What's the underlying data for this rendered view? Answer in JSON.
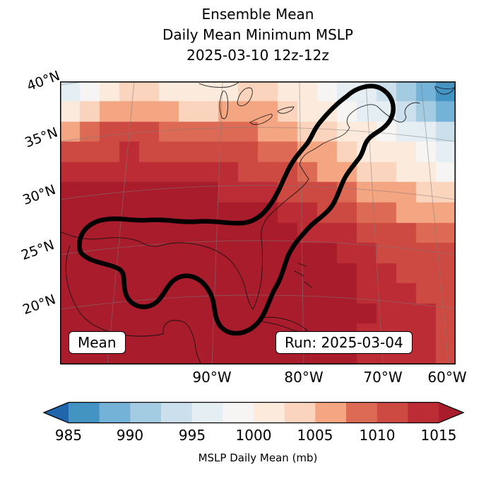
{
  "title": {
    "line1": "Ensemble Mean",
    "line2": "Daily Mean Minimum MSLP",
    "line3": "2025-03-10 12z-12z"
  },
  "map": {
    "lat_labels": [
      "40°N",
      "35°N",
      "30°N",
      "25°N",
      "20°N"
    ],
    "lon_labels": [
      "90°W",
      "80°W",
      "70°W",
      "60°W"
    ],
    "mean_box_label": "Mean",
    "run_box_label": "Run: 2025-03-04"
  },
  "colorbar": {
    "label": "MSLP Daily Mean (mb)",
    "ticks": [
      "985",
      "990",
      "995",
      "1000",
      "1005",
      "1010",
      "1015"
    ],
    "under_color": "#2166ac",
    "over_color": "#a81c2c",
    "segment_colors": [
      "#4393c3",
      "#74b2d7",
      "#a3cbe2",
      "#cbdfec",
      "#e4eef3",
      "#f6f5f3",
      "#fcebdd",
      "#fad4bd",
      "#f4a582",
      "#dd6a55",
      "#cc4a42",
      "#bb2c35"
    ]
  },
  "chart_data": {
    "type": "heatmap",
    "title": "Ensemble Mean Daily Mean Minimum MSLP 2025-03-10 12z-12z",
    "variable": "MSLP Daily Mean (mb)",
    "run": "2025-03-04",
    "valid": "2025-03-10 12z-12z",
    "colormap": "RdBu_r",
    "levels_mb": [
      985,
      987.5,
      990,
      992.5,
      995,
      997.5,
      1000,
      1002.5,
      1005,
      1007.5,
      1010,
      1012.5,
      1015
    ],
    "level_step_mb": 2.5,
    "lat_ticks_deg_n": [
      40,
      35,
      30,
      25,
      20
    ],
    "lon_ticks_deg_w": [
      90,
      80,
      70,
      60
    ],
    "contour_region_label": "Mean",
    "grid_note": "approximate MSLP (mb) read from map shading; 20 columns (west to east) x 14 rows (north to south)",
    "grid_mb": [
      [
        996,
        999,
        1002,
        1004,
        1004,
        1002,
        1000,
        1000,
        1002,
        1004,
        1003,
        1002,
        1000,
        999,
        997,
        995,
        993,
        990,
        988,
        986
      ],
      [
        1002,
        1004,
        1006,
        1007,
        1007,
        1006,
        1004,
        1003,
        1005,
        1006,
        1005,
        1004,
        1002,
        1000,
        998,
        997,
        995,
        993,
        990,
        988
      ],
      [
        1007,
        1009,
        1010,
        1010,
        1010,
        1009,
        1008,
        1008,
        1008,
        1008,
        1007,
        1006,
        1004,
        1003,
        1001,
        1000,
        998,
        997,
        995,
        994
      ],
      [
        1011,
        1012,
        1012,
        1013,
        1012,
        1012,
        1011,
        1011,
        1010,
        1010,
        1009,
        1008,
        1006,
        1005,
        1003,
        1002,
        1001,
        1000,
        998,
        997
      ],
      [
        1013,
        1014,
        1014,
        1014,
        1014,
        1014,
        1013,
        1013,
        1013,
        1012,
        1011,
        1010,
        1009,
        1007,
        1006,
        1004,
        1003,
        1002,
        1000,
        999
      ],
      [
        1016,
        1016,
        1016,
        1016,
        1016,
        1015,
        1015,
        1015,
        1014,
        1014,
        1013,
        1012,
        1011,
        1010,
        1008,
        1007,
        1006,
        1005,
        1004,
        1003
      ],
      [
        1016,
        1017,
        1017,
        1017,
        1017,
        1016,
        1016,
        1016,
        1016,
        1015,
        1015,
        1014,
        1013,
        1012,
        1011,
        1009,
        1008,
        1007,
        1006,
        1005
      ],
      [
        1017,
        1017,
        1017,
        1017,
        1017,
        1017,
        1017,
        1017,
        1016,
        1016,
        1016,
        1015,
        1014,
        1014,
        1013,
        1012,
        1011,
        1010,
        1009,
        1008
      ],
      [
        1017,
        1017,
        1017,
        1017,
        1017,
        1017,
        1017,
        1017,
        1017,
        1016,
        1016,
        1016,
        1015,
        1015,
        1014,
        1013,
        1012,
        1011,
        1010,
        1010
      ],
      [
        1016,
        1017,
        1017,
        1017,
        1017,
        1017,
        1017,
        1017,
        1017,
        1017,
        1016,
        1016,
        1016,
        1015,
        1015,
        1014,
        1013,
        1012,
        1012,
        1011
      ],
      [
        1016,
        1016,
        1016,
        1017,
        1017,
        1017,
        1017,
        1017,
        1017,
        1017,
        1016,
        1016,
        1016,
        1016,
        1015,
        1014,
        1014,
        1013,
        1012,
        1012
      ],
      [
        1015,
        1016,
        1016,
        1016,
        1016,
        1016,
        1017,
        1017,
        1017,
        1017,
        1016,
        1016,
        1016,
        1016,
        1015,
        1015,
        1014,
        1013,
        1013,
        1012
      ],
      [
        1015,
        1015,
        1016,
        1016,
        1016,
        1016,
        1016,
        1016,
        1016,
        1016,
        1016,
        1016,
        1016,
        1015,
        1015,
        1014,
        1014,
        1013,
        1013,
        1012
      ],
      [
        1015,
        1015,
        1015,
        1016,
        1016,
        1016,
        1016,
        1016,
        1016,
        1016,
        1016,
        1016,
        1015,
        1015,
        1015,
        1014,
        1014,
        1013,
        1013,
        1012
      ]
    ]
  }
}
